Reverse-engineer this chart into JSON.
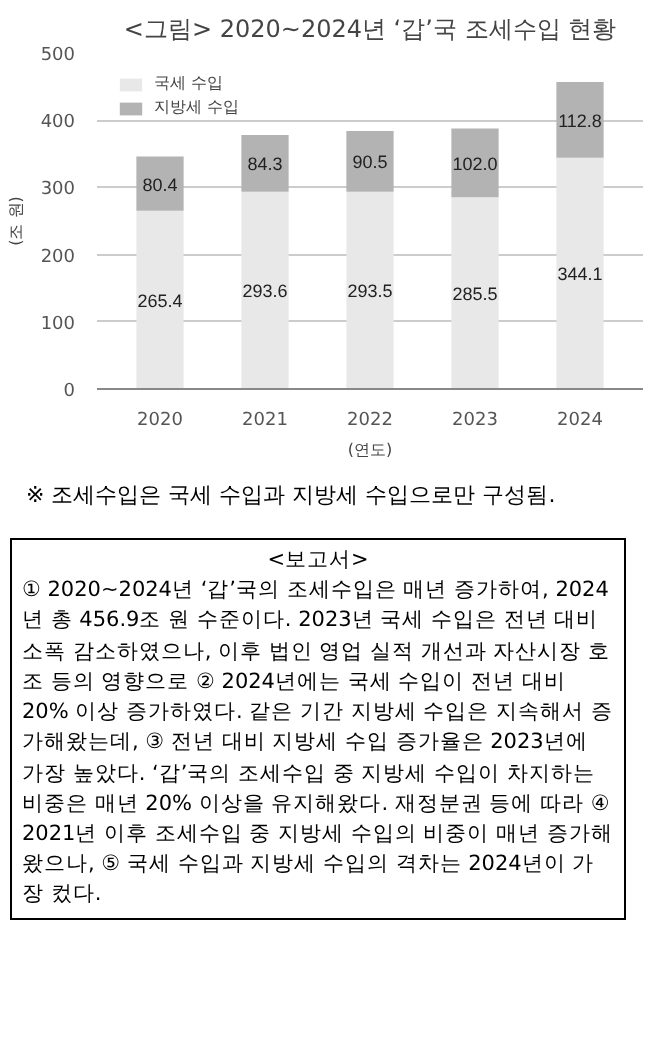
{
  "chart_data": {
    "type": "bar",
    "title": "<그림> 2020~2024년 ‘갑’국 조세수입 현황",
    "ylabel": "(조 원)",
    "xlabel": "(연도)",
    "categories": [
      "2020",
      "2021",
      "2022",
      "2023",
      "2024"
    ],
    "series": [
      {
        "name": "국세 수입",
        "color": "#e8e8e8",
        "values": [
          265.4,
          293.6,
          293.5,
          285.5,
          344.1
        ],
        "value_labels": [
          "265.4",
          "293.6",
          "293.5",
          "285.5",
          "344.1"
        ]
      },
      {
        "name": "지방세 수입",
        "color": "#b3b3b3",
        "values": [
          80.4,
          84.3,
          90.5,
          102.0,
          112.8
        ],
        "value_labels": [
          "80.4",
          "84.3",
          "90.5",
          "102.0",
          "112.8"
        ]
      }
    ],
    "stacked": true,
    "ylim": [
      0,
      500
    ],
    "yticks": [
      0,
      100,
      200,
      300,
      400,
      500
    ],
    "grid": "y",
    "legend": "top left",
    "annotations": [
      "※ 조세수입은 국세 수입과 지방세 수입으로만 구성됨.",
      "<보고서>",
      "① 2020~2024년 ‘갑’국의 조세수입은 매년 증가하여, 2024년 총 456.9조 원 수준이다. 2023년 국세 수입은 전년 대비 소폭 감소하였으나, 이후 법인 영업 실적 개선과 자산시장 호조 등의 영향으로 ② 2024년에는 국세 수입이 전년 대비 20% 이상 증가하였다. 같은 기간 지방세 수입은 지속해서 증가해왔는데, ③ 전년 대비 지방세 수입 증가율은 2023년에 가장 높았다. ‘갑’국의 조세수입 중 지방세 수입이 차지하는 비중은 매년 20% 이상을 유지해왔다. 재정분권 등에 따라 ④ 2021년 이후 조세수입 중 지방세 수입의 비중이 매년 증가해 왔으나, ⑤ 국세 수입과 지방세 수입의 격차는 2024년이 가장 컸다."
    ]
  }
}
